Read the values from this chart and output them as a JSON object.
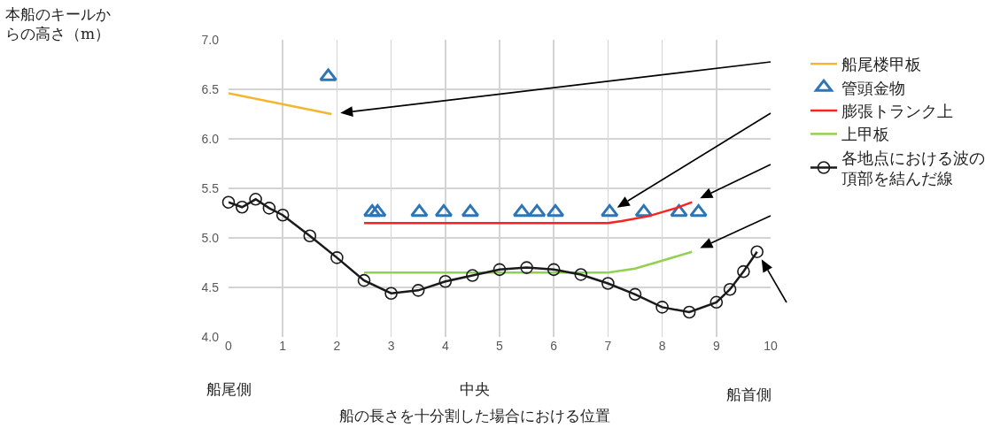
{
  "chart_data": {
    "type": "line",
    "xlabel": "船の長さを十分割した場合における位置",
    "xlim": [
      0,
      10
    ],
    "xticks": [
      0,
      1,
      2,
      3,
      4,
      5,
      6,
      7,
      8,
      9,
      10
    ],
    "ylim": [
      4,
      7
    ],
    "yticks": [
      {
        "value": 4,
        "label": "4.0"
      },
      4.5,
      {
        "value": 5,
        "label": "5.0"
      },
      5.5,
      {
        "value": 6,
        "label": "6.0"
      },
      6.5,
      {
        "value": 7,
        "label": "7.0"
      }
    ],
    "grid": true,
    "legend": "right",
    "annotations": [
      "本船のキールからの高さ（m）",
      "船尾側",
      "中央",
      "船首側"
    ],
    "series": [
      {
        "name": "船尾楼甲板",
        "color": "#f5b52e",
        "marker": "none",
        "x": [
          0,
          1.9
        ],
        "values": [
          6.46,
          6.25
        ]
      },
      {
        "name": "管頭金物",
        "type": "scatter",
        "color": "#2e75b6",
        "marker": "triangle",
        "x": [
          1.84,
          2.65,
          2.75,
          3.52,
          3.97,
          4.46,
          5.41,
          5.69,
          6.03,
          7.03,
          7.66,
          8.31,
          8.67
        ],
        "values": [
          6.63,
          5.26,
          5.26,
          5.26,
          5.26,
          5.26,
          5.26,
          5.26,
          5.26,
          5.26,
          5.26,
          5.26,
          5.26
        ]
      },
      {
        "name": "膨張トランク上",
        "color": "#ff2020",
        "marker": "none",
        "x": [
          2.5,
          7.0,
          7.25,
          7.75,
          8.25,
          8.55
        ],
        "values": [
          5.15,
          5.15,
          5.17,
          5.22,
          5.3,
          5.36
        ]
      },
      {
        "name": "上甲板",
        "color": "#92d050",
        "marker": "none",
        "x": [
          2.5,
          7.0,
          7.5,
          8.0,
          8.55
        ],
        "values": [
          4.65,
          4.65,
          4.69,
          4.77,
          4.86
        ]
      },
      {
        "name": "各地点における波の頂部を結んだ線",
        "color": "#1a1a1a",
        "marker": "circle",
        "x": [
          0,
          0.25,
          0.5,
          0.75,
          1,
          1.5,
          2,
          2.5,
          3,
          3.5,
          4,
          4.5,
          5,
          5.5,
          6,
          6.5,
          7,
          7.5,
          8,
          8.5,
          9,
          9.25,
          9.5,
          9.75
        ],
        "values": [
          5.36,
          5.31,
          5.39,
          5.3,
          5.23,
          5.02,
          4.8,
          4.57,
          4.44,
          4.47,
          4.56,
          4.62,
          4.68,
          4.7,
          4.68,
          4.63,
          4.54,
          4.43,
          4.3,
          4.25,
          4.35,
          4.48,
          4.66,
          4.86
        ]
      }
    ]
  }
}
